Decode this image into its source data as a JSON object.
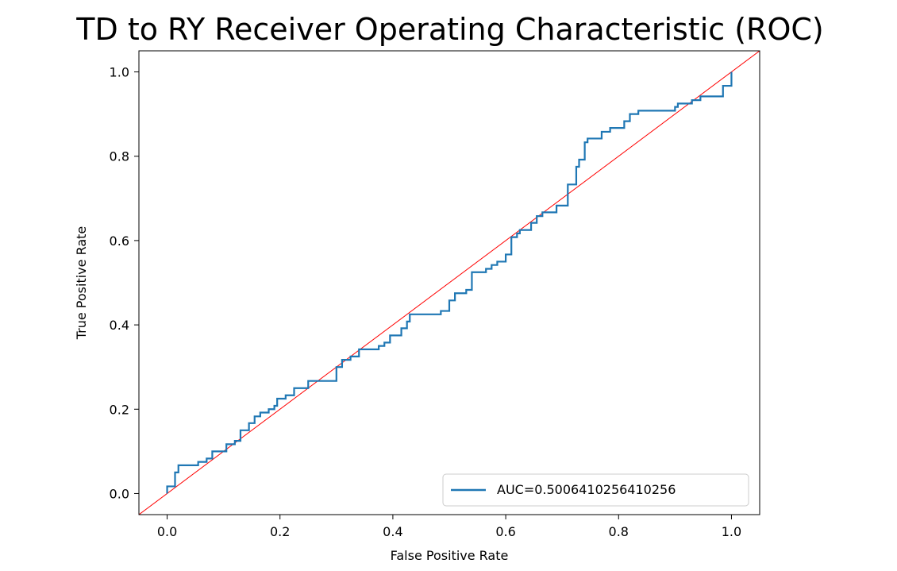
{
  "chart_data": {
    "type": "line",
    "title": "TD to RY Receiver Operating Characteristic (ROC)",
    "xlabel": "False Positive Rate",
    "ylabel": "True Positive Rate",
    "xlim": [
      -0.05,
      1.05
    ],
    "ylim": [
      -0.05,
      1.05
    ],
    "xticks": [
      "0.0",
      "0.2",
      "0.4",
      "0.6",
      "0.8",
      "1.0"
    ],
    "yticks": [
      "0.0",
      "0.2",
      "0.4",
      "0.6",
      "0.8",
      "1.0"
    ],
    "grid": false,
    "legend_position": "lower-right",
    "series": [
      {
        "name": "AUC=0.5006410256410256",
        "color": "#1f77b4",
        "drawstyle": "steps-post",
        "points": [
          [
            0.0,
            0.0
          ],
          [
            0.0,
            0.017
          ],
          [
            0.014,
            0.017
          ],
          [
            0.014,
            0.05
          ],
          [
            0.02,
            0.05
          ],
          [
            0.02,
            0.067
          ],
          [
            0.055,
            0.067
          ],
          [
            0.055,
            0.075
          ],
          [
            0.07,
            0.075
          ],
          [
            0.07,
            0.083
          ],
          [
            0.08,
            0.083
          ],
          [
            0.08,
            0.1
          ],
          [
            0.105,
            0.1
          ],
          [
            0.105,
            0.117
          ],
          [
            0.12,
            0.117
          ],
          [
            0.12,
            0.125
          ],
          [
            0.13,
            0.125
          ],
          [
            0.13,
            0.15
          ],
          [
            0.145,
            0.15
          ],
          [
            0.145,
            0.167
          ],
          [
            0.155,
            0.167
          ],
          [
            0.155,
            0.183
          ],
          [
            0.165,
            0.183
          ],
          [
            0.165,
            0.192
          ],
          [
            0.18,
            0.192
          ],
          [
            0.18,
            0.2
          ],
          [
            0.19,
            0.2
          ],
          [
            0.19,
            0.208
          ],
          [
            0.195,
            0.208
          ],
          [
            0.195,
            0.225
          ],
          [
            0.21,
            0.225
          ],
          [
            0.21,
            0.233
          ],
          [
            0.225,
            0.233
          ],
          [
            0.225,
            0.25
          ],
          [
            0.25,
            0.25
          ],
          [
            0.25,
            0.267
          ],
          [
            0.3,
            0.267
          ],
          [
            0.3,
            0.3
          ],
          [
            0.31,
            0.3
          ],
          [
            0.31,
            0.317
          ],
          [
            0.325,
            0.317
          ],
          [
            0.325,
            0.325
          ],
          [
            0.34,
            0.325
          ],
          [
            0.34,
            0.342
          ],
          [
            0.375,
            0.342
          ],
          [
            0.375,
            0.35
          ],
          [
            0.385,
            0.35
          ],
          [
            0.385,
            0.358
          ],
          [
            0.395,
            0.358
          ],
          [
            0.395,
            0.375
          ],
          [
            0.415,
            0.375
          ],
          [
            0.415,
            0.392
          ],
          [
            0.425,
            0.392
          ],
          [
            0.425,
            0.408
          ],
          [
            0.43,
            0.408
          ],
          [
            0.43,
            0.425
          ],
          [
            0.485,
            0.425
          ],
          [
            0.485,
            0.433
          ],
          [
            0.5,
            0.433
          ],
          [
            0.5,
            0.458
          ],
          [
            0.51,
            0.458
          ],
          [
            0.51,
            0.475
          ],
          [
            0.53,
            0.475
          ],
          [
            0.53,
            0.483
          ],
          [
            0.54,
            0.483
          ],
          [
            0.54,
            0.525
          ],
          [
            0.565,
            0.525
          ],
          [
            0.565,
            0.533
          ],
          [
            0.575,
            0.533
          ],
          [
            0.575,
            0.542
          ],
          [
            0.585,
            0.542
          ],
          [
            0.585,
            0.55
          ],
          [
            0.6,
            0.55
          ],
          [
            0.6,
            0.567
          ],
          [
            0.61,
            0.567
          ],
          [
            0.61,
            0.608
          ],
          [
            0.62,
            0.608
          ],
          [
            0.62,
            0.617
          ],
          [
            0.625,
            0.617
          ],
          [
            0.625,
            0.625
          ],
          [
            0.645,
            0.625
          ],
          [
            0.645,
            0.642
          ],
          [
            0.655,
            0.642
          ],
          [
            0.655,
            0.658
          ],
          [
            0.665,
            0.658
          ],
          [
            0.665,
            0.667
          ],
          [
            0.69,
            0.667
          ],
          [
            0.69,
            0.683
          ],
          [
            0.71,
            0.683
          ],
          [
            0.71,
            0.733
          ],
          [
            0.725,
            0.733
          ],
          [
            0.725,
            0.775
          ],
          [
            0.73,
            0.775
          ],
          [
            0.73,
            0.792
          ],
          [
            0.74,
            0.792
          ],
          [
            0.74,
            0.833
          ],
          [
            0.745,
            0.833
          ],
          [
            0.745,
            0.842
          ],
          [
            0.77,
            0.842
          ],
          [
            0.77,
            0.858
          ],
          [
            0.785,
            0.858
          ],
          [
            0.785,
            0.867
          ],
          [
            0.81,
            0.867
          ],
          [
            0.81,
            0.883
          ],
          [
            0.82,
            0.883
          ],
          [
            0.82,
            0.9
          ],
          [
            0.835,
            0.9
          ],
          [
            0.835,
            0.908
          ],
          [
            0.9,
            0.908
          ],
          [
            0.9,
            0.917
          ],
          [
            0.905,
            0.917
          ],
          [
            0.905,
            0.925
          ],
          [
            0.93,
            0.925
          ],
          [
            0.93,
            0.933
          ],
          [
            0.945,
            0.933
          ],
          [
            0.945,
            0.942
          ],
          [
            0.985,
            0.942
          ],
          [
            0.985,
            0.967
          ],
          [
            1.0,
            0.967
          ],
          [
            1.0,
            1.0
          ]
        ]
      }
    ],
    "reference_line": {
      "color": "#ff0000",
      "points": [
        [
          -0.05,
          -0.05
        ],
        [
          1.05,
          1.05
        ]
      ]
    }
  }
}
